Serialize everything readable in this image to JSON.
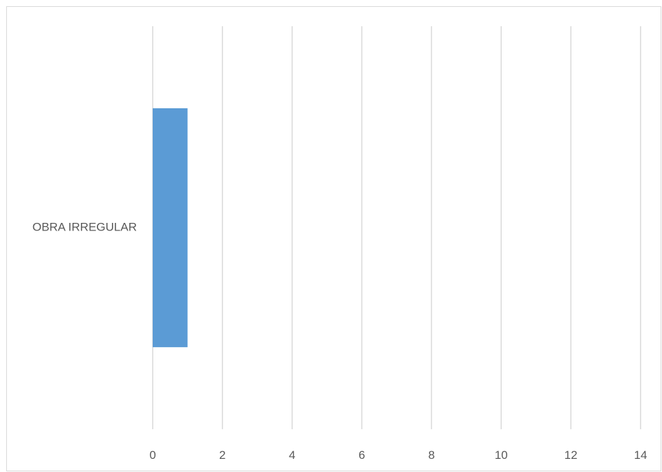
{
  "chart_data": {
    "type": "bar",
    "orientation": "horizontal",
    "categories": [
      "OBRA IRREGULAR"
    ],
    "values": [
      1
    ],
    "title": "",
    "xlabel": "",
    "ylabel": "",
    "xlim": [
      0,
      14
    ],
    "xticks": [
      0,
      2,
      4,
      6,
      8,
      10,
      12,
      14
    ],
    "grid": true,
    "legend": "none",
    "colors": {
      "bar": "#5b9bd5",
      "grid": "#d9d9d9",
      "text": "#595959",
      "border": "#d9d9d9"
    }
  }
}
